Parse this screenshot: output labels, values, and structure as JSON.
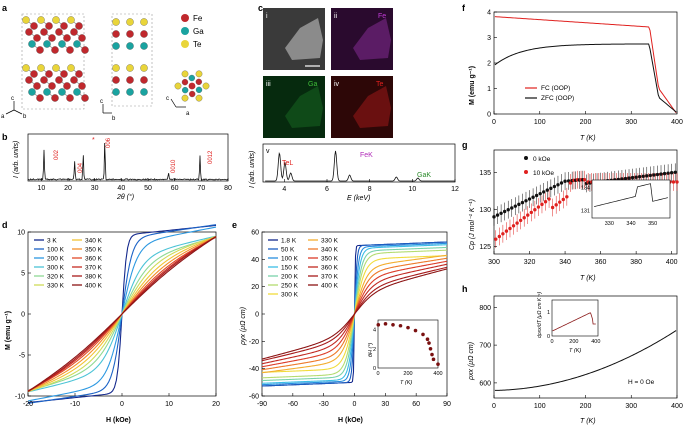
{
  "panels": {
    "a": {
      "letter": "a",
      "legend": [
        {
          "el": "Fe",
          "color": "#c0282d"
        },
        {
          "el": "Ga",
          "color": "#1aa3a0"
        },
        {
          "el": "Te",
          "color": "#e9d53a"
        }
      ],
      "axes1": [
        "c",
        "b",
        "a"
      ],
      "axes2": [
        "c",
        "b"
      ],
      "axes3": [
        "c",
        "a"
      ]
    },
    "b": {
      "letter": "b",
      "ylabel": "I (arb. units)",
      "xlabel": "2θ (°)",
      "xticks": [
        "10",
        "20",
        "30",
        "40",
        "50",
        "60",
        "70",
        "80"
      ],
      "peaks": [
        "002",
        "004",
        "*",
        "006",
        "0010",
        "0012"
      ]
    },
    "c": {
      "letter": "c",
      "tiles": [
        {
          "id": "i",
          "el": ""
        },
        {
          "id": "ii",
          "el": "Fe"
        },
        {
          "id": "iii",
          "el": "Ga"
        },
        {
          "id": "iv",
          "el": "Te"
        }
      ],
      "spec_label": "v",
      "ylabel": "I (arb. units)",
      "xlabel": "E (keV)",
      "xticks": [
        "4",
        "6",
        "8",
        "10",
        "12"
      ],
      "peaks": [
        "TeL",
        "FeK",
        "GaK"
      ]
    },
    "d": {
      "letter": "d",
      "ylabel": "M (emu g⁻¹)",
      "xlabel": "H (kOe)",
      "xticks": [
        "-20",
        "-10",
        "0",
        "10",
        "20"
      ],
      "yticks": [
        "10",
        "5",
        "0",
        "-5",
        "-10"
      ],
      "legend_col1": [
        "3 K",
        "100 K",
        "200 K",
        "300 K",
        "320 K",
        "330 K"
      ],
      "legend_col2": [
        "340 K",
        "350 K",
        "360 K",
        "370 K",
        "380 K",
        "400 K"
      ]
    },
    "e": {
      "letter": "e",
      "ylabel": "ρyx (μΩ cm)",
      "xlabel": "H (kOe)",
      "xticks": [
        "-90",
        "-60",
        "-30",
        "0",
        "30",
        "60",
        "90"
      ],
      "yticks": [
        "60",
        "40",
        "20",
        "0",
        "-20",
        "-40",
        "-60"
      ],
      "legend_col1": [
        "1.8 K",
        "50 K",
        "100 K",
        "150 K",
        "200 K",
        "250 K",
        "300 K"
      ],
      "legend_col2": [
        "330 K",
        "340 K",
        "350 K",
        "360 K",
        "370 K",
        "400 K"
      ],
      "inset": {
        "ylabel": "θH (°)",
        "xlabel": "T (K)",
        "xticks": [
          "0",
          "200",
          "400"
        ],
        "yticks": [
          "4",
          "2",
          "0"
        ]
      }
    },
    "f": {
      "letter": "f",
      "ylabel": "M (emu g⁻¹)",
      "xlabel": "T (K)",
      "xticks": [
        "0",
        "100",
        "200",
        "300",
        "400"
      ],
      "yticks": [
        "0",
        "1",
        "2",
        "3",
        "4"
      ],
      "legend": [
        "FC (OOP)",
        "ZFC (OOP)"
      ]
    },
    "g": {
      "letter": "g",
      "ylabel": "Cp (J mol⁻¹ K⁻¹)",
      "xlabel": "T (K)",
      "xticks": [
        "300",
        "320",
        "340",
        "360",
        "380",
        "400"
      ],
      "yticks": [
        "125",
        "130",
        "135"
      ],
      "legend": [
        "0 kOe",
        "10 kOe"
      ],
      "inset": {
        "xticks": [
          "330",
          "340",
          "350"
        ],
        "yticks": [
          "134",
          "131"
        ]
      }
    },
    "h": {
      "letter": "h",
      "ylabel": "ρxx (μΩ cm)",
      "xlabel": "T (K)",
      "xticks": [
        "0",
        "100",
        "200",
        "300",
        "400"
      ],
      "yticks": [
        "800",
        "700",
        "600"
      ],
      "annotation": "H = 0 Oe",
      "inset": {
        "ylabel": "dρxx/dT (μΩ cm K⁻¹)",
        "xlabel": "T (K)",
        "xticks": [
          "0",
          "200",
          "400"
        ],
        "yticks": [
          "1",
          "0"
        ]
      }
    }
  },
  "colors": {
    "red": "#e0201e",
    "black": "#111111"
  }
}
